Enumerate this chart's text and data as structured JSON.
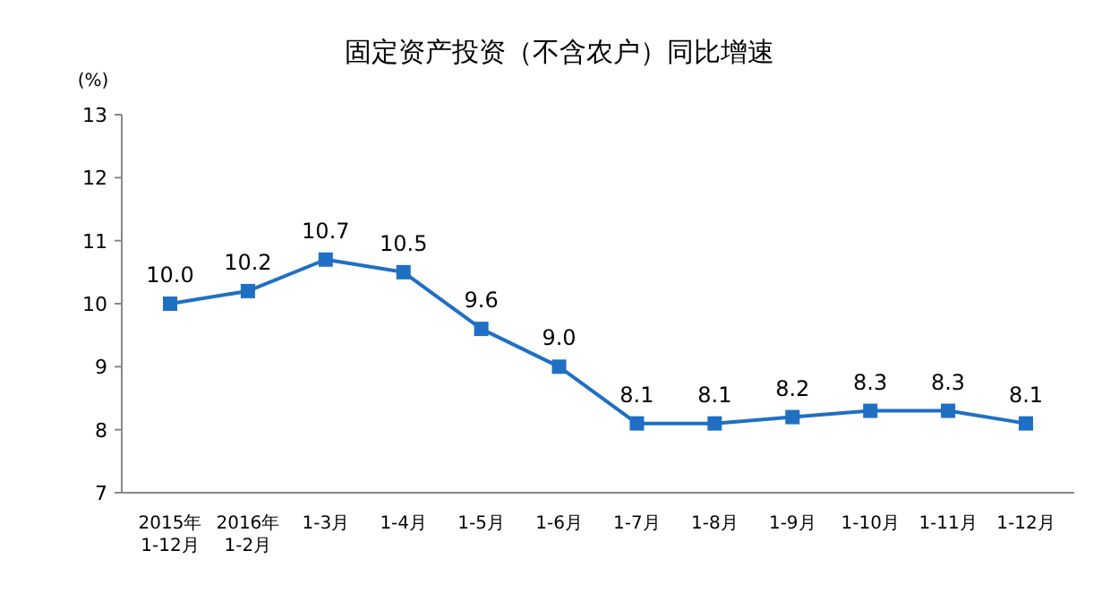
{
  "chart_data": {
    "type": "line",
    "title": "固定资产投资（不含农户）同比增速",
    "ylabel": "(%)",
    "categories": [
      "2015年\n1-12月",
      "2016年\n1-2月",
      "1-3月",
      "1-4月",
      "1-5月",
      "1-6月",
      "1-7月",
      "1-8月",
      "1-9月",
      "1-10月",
      "1-11月",
      "1-12月"
    ],
    "series": [
      {
        "color": "#1f6fc5",
        "values": [
          10.0,
          10.2,
          10.7,
          10.5,
          9.6,
          9.0,
          8.1,
          8.1,
          8.2,
          8.3,
          8.3,
          8.1
        ],
        "value_labels": [
          "10.0",
          "10.2",
          "10.7",
          "10.5",
          "9.6",
          "9.0",
          "8.1",
          "8.1",
          "8.2",
          "8.3",
          "8.3",
          "8.1"
        ]
      }
    ],
    "ylim": [
      7,
      13
    ],
    "yticks": [
      7,
      8,
      9,
      10,
      11,
      12,
      13
    ],
    "marker": "square",
    "line_style": "solid"
  }
}
